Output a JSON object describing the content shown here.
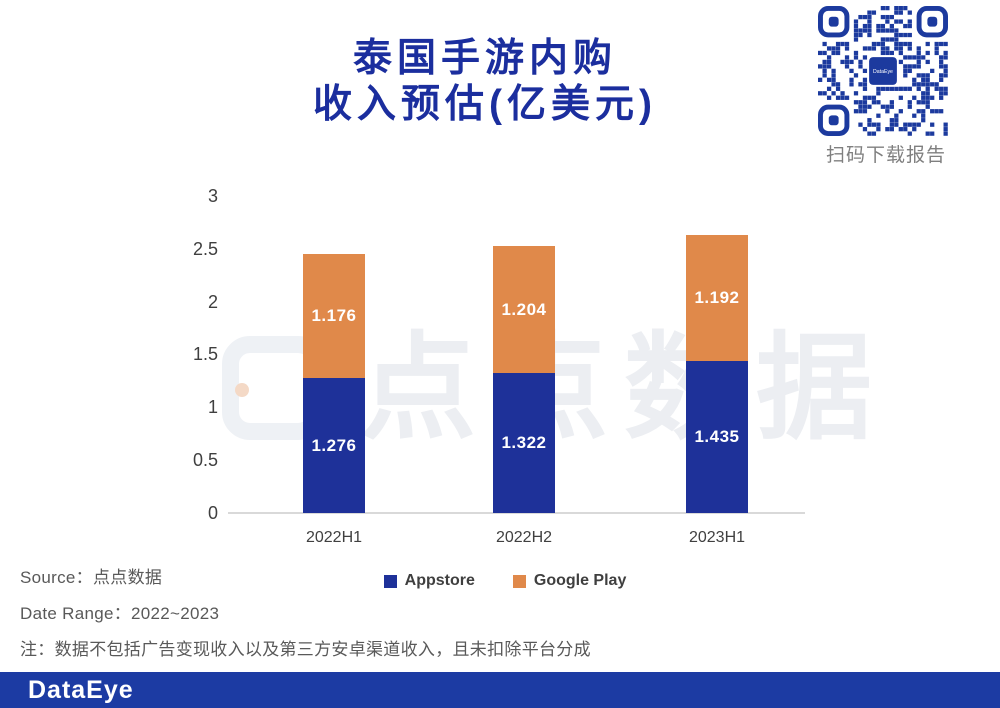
{
  "title": {
    "line1": "泰国手游内购",
    "line2": "收入预估(亿美元)",
    "color": "#1b2e9e"
  },
  "qr_panel": {
    "caption": "扫码下载报告",
    "logo_text": "DataEye",
    "qr_color": "#1c3a9e"
  },
  "watermark_text": "点点数据",
  "chart_data": {
    "type": "bar",
    "stacked": true,
    "title": "泰国手游内购收入预估(亿美元)",
    "categories": [
      "2022H1",
      "2022H2",
      "2023H1"
    ],
    "series": [
      {
        "name": "Appstore",
        "color": "#1e3199",
        "values": [
          1.276,
          1.322,
          1.435
        ]
      },
      {
        "name": "Google Play",
        "color": "#e0894a",
        "values": [
          1.176,
          1.204,
          1.192
        ]
      }
    ],
    "totals": [
      2.452,
      2.526,
      2.627
    ],
    "ylim": [
      0,
      3
    ],
    "yticks": [
      "0",
      "0.5",
      "1",
      "1.5",
      "2",
      "2.5",
      "3"
    ],
    "grid": false,
    "legend_position": "bottom-center",
    "value_label_color": "#ffffff"
  },
  "footnotes": {
    "source": "Source：点点数据",
    "date_range": "Date Range：2022~2023",
    "note": "注：数据不包括广告变现收入以及第三方安卓渠道收入，且未扣除平台分成"
  },
  "footer": {
    "logo": "DataEye",
    "bar_color": "#1c3ba3"
  }
}
